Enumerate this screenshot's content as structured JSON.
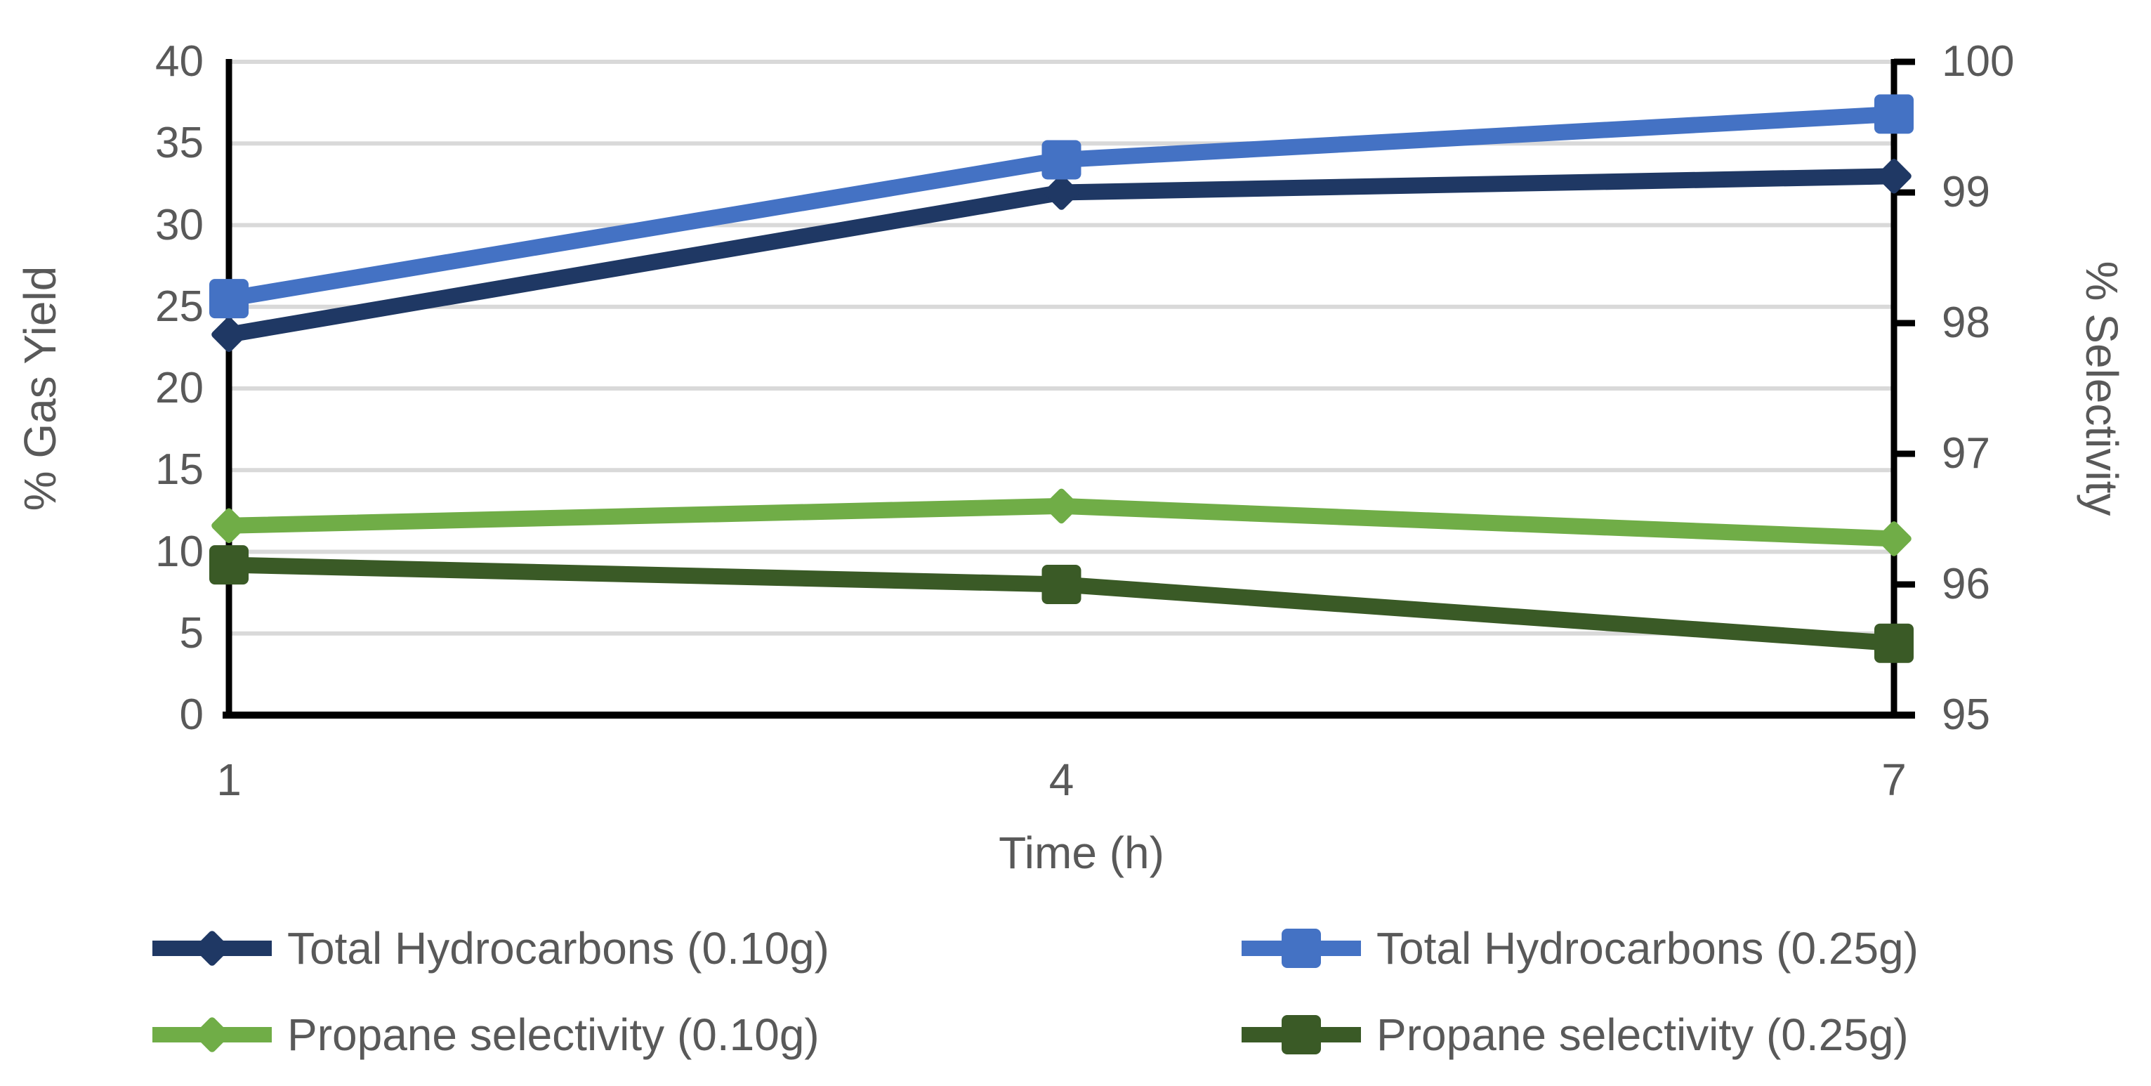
{
  "chart_data": {
    "type": "line",
    "title": "",
    "xlabel": "Time (h)",
    "x": [
      1,
      4,
      7
    ],
    "x_tick_labels": [
      "1",
      "4",
      "7"
    ],
    "left_axis": {
      "label": "% Gas Yield",
      "min": 0,
      "max": 40,
      "ticks": [
        0,
        5,
        10,
        15,
        20,
        25,
        30,
        35,
        40
      ],
      "tick_labels": [
        "0",
        "5",
        "10",
        "15",
        "20",
        "25",
        "30",
        "35",
        "40"
      ]
    },
    "right_axis": {
      "label": "% Selectivity",
      "min": 95,
      "max": 100,
      "ticks": [
        95,
        96,
        97,
        98,
        99,
        100
      ],
      "tick_labels": [
        "95",
        "96",
        "97",
        "98",
        "99",
        "100"
      ]
    },
    "grid": "horizontal gridlines at every 5 units of left axis",
    "legend_position": "bottom, two columns",
    "series": [
      {
        "name": "Total Hydrocarbons (0.10g)",
        "axis": "left",
        "marker": "diamond",
        "color": "#1F3864",
        "values": [
          23.3,
          32.0,
          33.0
        ]
      },
      {
        "name": "Total Hydrocarbons (0.25g)",
        "axis": "left",
        "marker": "square",
        "color": "#4472C4",
        "values": [
          25.5,
          34.0,
          36.8
        ]
      },
      {
        "name": "Propane selectivity (0.10g)",
        "axis": "right",
        "marker": "diamond",
        "color": "#70AD47",
        "values": [
          96.45,
          96.6,
          96.35
        ]
      },
      {
        "name": "Propane selectivity (0.25g)",
        "axis": "right",
        "marker": "square",
        "color": "#3A5A26",
        "values": [
          96.15,
          96.0,
          95.55
        ]
      }
    ],
    "colors": {
      "axis_line": "#000000",
      "gridline": "#D9D9D9",
      "text": "#595959",
      "background": "#FFFFFF"
    }
  }
}
